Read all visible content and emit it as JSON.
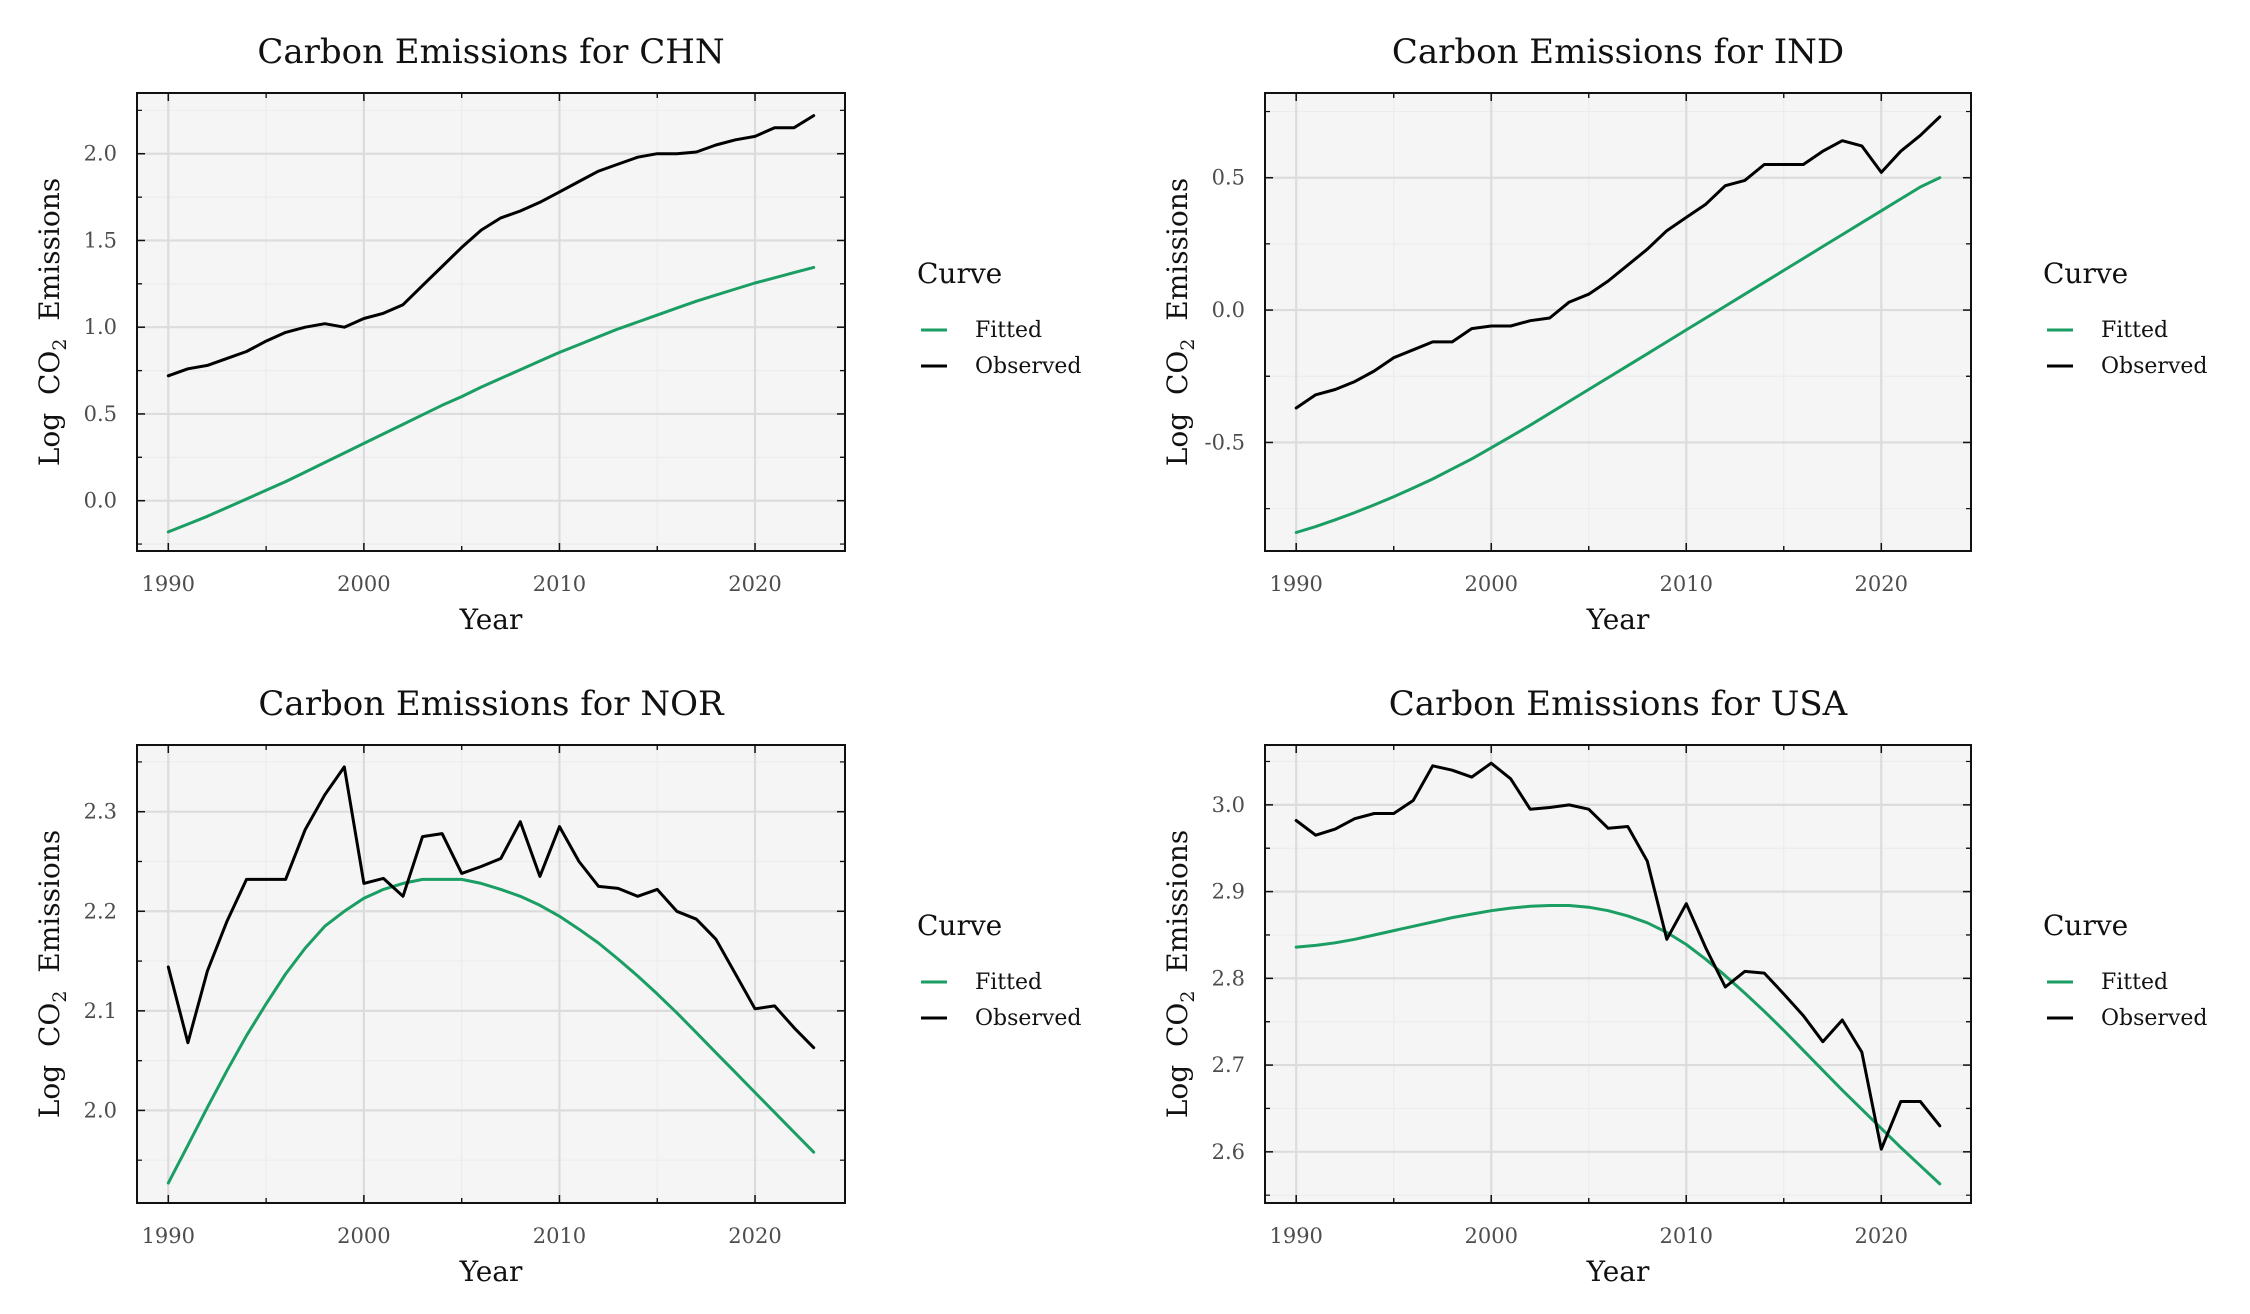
{
  "colors": {
    "fitted": "#1a9e63",
    "observed": "#000000",
    "panel_bg": "#f5f5f5",
    "grid_major": "#dcdcdc",
    "grid_minor": "#ececec"
  },
  "legend": {
    "title": "Curve",
    "items": [
      "Fitted",
      "Observed"
    ]
  },
  "chart_data": [
    {
      "type": "line",
      "title": "Carbon Emissions for CHN",
      "xlabel": "Year",
      "ylabel": "Log CO2 Emissions",
      "xlim": [
        1988.4,
        2024.6
      ],
      "ylim": [
        -0.29,
        2.35
      ],
      "xticks": [
        1990,
        2000,
        2010,
        2020
      ],
      "yticks": [
        0.0,
        0.5,
        1.0,
        1.5,
        2.0
      ],
      "ytick_labels": [
        "0.0",
        "0.5",
        "1.0",
        "1.5",
        "2.0"
      ],
      "x": [
        1990,
        1991,
        1992,
        1993,
        1994,
        1995,
        1996,
        1997,
        1998,
        1999,
        2000,
        2001,
        2002,
        2003,
        2004,
        2005,
        2006,
        2007,
        2008,
        2009,
        2010,
        2011,
        2012,
        2013,
        2014,
        2015,
        2016,
        2017,
        2018,
        2019,
        2020,
        2021,
        2022,
        2023
      ],
      "series": [
        {
          "name": "Fitted",
          "values": [
            -0.18,
            -0.135,
            -0.09,
            -0.04,
            0.01,
            0.06,
            0.11,
            0.165,
            0.22,
            0.275,
            0.33,
            0.385,
            0.44,
            0.495,
            0.55,
            0.6,
            0.655,
            0.705,
            0.755,
            0.805,
            0.855,
            0.9,
            0.945,
            0.99,
            1.03,
            1.07,
            1.11,
            1.15,
            1.185,
            1.22,
            1.255,
            1.285,
            1.315,
            1.345
          ]
        },
        {
          "name": "Observed",
          "values": [
            0.72,
            0.76,
            0.78,
            0.82,
            0.86,
            0.92,
            0.97,
            1.0,
            1.02,
            1.0,
            1.05,
            1.08,
            1.13,
            1.24,
            1.35,
            1.46,
            1.56,
            1.63,
            1.67,
            1.72,
            1.78,
            1.84,
            1.9,
            1.94,
            1.98,
            2.0,
            2.0,
            2.01,
            2.05,
            2.08,
            2.1,
            2.15,
            2.15,
            2.22
          ]
        }
      ]
    },
    {
      "type": "line",
      "title": "Carbon Emissions for IND",
      "xlabel": "Year",
      "ylabel": "Log CO2 Emissions",
      "xlim": [
        1988.4,
        2024.6
      ],
      "ylim": [
        -0.91,
        0.82
      ],
      "xticks": [
        1990,
        2000,
        2010,
        2020
      ],
      "yticks": [
        -0.5,
        0.0,
        0.5
      ],
      "ytick_labels": [
        "-0.5",
        "0.0",
        "0.5"
      ],
      "x": [
        1990,
        1991,
        1992,
        1993,
        1994,
        1995,
        1996,
        1997,
        1998,
        1999,
        2000,
        2001,
        2002,
        2003,
        2004,
        2005,
        2006,
        2007,
        2008,
        2009,
        2010,
        2011,
        2012,
        2013,
        2014,
        2015,
        2016,
        2017,
        2018,
        2019,
        2020,
        2021,
        2022,
        2023
      ],
      "series": [
        {
          "name": "Fitted",
          "values": [
            -0.84,
            -0.818,
            -0.792,
            -0.765,
            -0.736,
            -0.705,
            -0.672,
            -0.638,
            -0.6,
            -0.562,
            -0.52,
            -0.478,
            -0.435,
            -0.39,
            -0.345,
            -0.3,
            -0.255,
            -0.21,
            -0.165,
            -0.12,
            -0.075,
            -0.03,
            0.015,
            0.06,
            0.105,
            0.15,
            0.195,
            0.24,
            0.285,
            0.33,
            0.375,
            0.42,
            0.465,
            0.5
          ]
        },
        {
          "name": "Observed",
          "values": [
            -0.37,
            -0.32,
            -0.3,
            -0.27,
            -0.23,
            -0.18,
            -0.15,
            -0.12,
            -0.12,
            -0.07,
            -0.06,
            -0.06,
            -0.04,
            -0.03,
            0.03,
            0.06,
            0.11,
            0.17,
            0.23,
            0.3,
            0.35,
            0.4,
            0.47,
            0.49,
            0.55,
            0.55,
            0.55,
            0.6,
            0.64,
            0.62,
            0.52,
            0.6,
            0.66,
            0.73
          ]
        }
      ]
    },
    {
      "type": "line",
      "title": "Carbon Emissions for NOR",
      "xlabel": "Year",
      "ylabel": "Log CO2 Emissions",
      "xlim": [
        1988.4,
        2024.6
      ],
      "ylim": [
        1.907,
        2.367
      ],
      "xticks": [
        1990,
        2000,
        2010,
        2020
      ],
      "yticks": [
        2.0,
        2.1,
        2.2,
        2.3
      ],
      "ytick_labels": [
        "2.0",
        "2.1",
        "2.2",
        "2.3"
      ],
      "x": [
        1990,
        1991,
        1992,
        1993,
        1994,
        1995,
        1996,
        1997,
        1998,
        1999,
        2000,
        2001,
        2002,
        2003,
        2004,
        2005,
        2006,
        2007,
        2008,
        2009,
        2010,
        2011,
        2012,
        2013,
        2014,
        2015,
        2016,
        2017,
        2018,
        2019,
        2020,
        2021,
        2022,
        2023
      ],
      "series": [
        {
          "name": "Fitted",
          "values": [
            1.927,
            1.965,
            2.003,
            2.04,
            2.075,
            2.107,
            2.137,
            2.163,
            2.185,
            2.2,
            2.213,
            2.222,
            2.228,
            2.232,
            2.232,
            2.232,
            2.228,
            2.222,
            2.215,
            2.206,
            2.195,
            2.182,
            2.168,
            2.152,
            2.135,
            2.117,
            2.098,
            2.078,
            2.058,
            2.038,
            2.018,
            1.998,
            1.978,
            1.958
          ]
        },
        {
          "name": "Observed",
          "values": [
            2.144,
            2.068,
            2.14,
            2.19,
            2.232,
            2.232,
            2.232,
            2.282,
            2.317,
            2.345,
            2.228,
            2.233,
            2.215,
            2.275,
            2.278,
            2.238,
            2.245,
            2.253,
            2.29,
            2.235,
            2.285,
            2.25,
            2.225,
            2.223,
            2.215,
            2.222,
            2.2,
            2.192,
            2.172,
            2.137,
            2.102,
            2.105,
            2.083,
            2.063
          ]
        }
      ]
    },
    {
      "type": "line",
      "title": "Carbon Emissions for USA",
      "xlabel": "Year",
      "ylabel": "Log CO2 Emissions",
      "xlim": [
        1988.4,
        2024.6
      ],
      "ylim": [
        2.541,
        3.069
      ],
      "xticks": [
        1990,
        2000,
        2010,
        2020
      ],
      "yticks": [
        2.6,
        2.7,
        2.8,
        2.9,
        3.0
      ],
      "ytick_labels": [
        "2.6",
        "2.7",
        "2.8",
        "2.9",
        "3.0"
      ],
      "x": [
        1990,
        1991,
        1992,
        1993,
        1994,
        1995,
        1996,
        1997,
        1998,
        1999,
        2000,
        2001,
        2002,
        2003,
        2004,
        2005,
        2006,
        2007,
        2008,
        2009,
        2010,
        2011,
        2012,
        2013,
        2014,
        2015,
        2016,
        2017,
        2018,
        2019,
        2020,
        2021,
        2022,
        2023
      ],
      "series": [
        {
          "name": "Fitted",
          "values": [
            2.836,
            2.838,
            2.841,
            2.845,
            2.85,
            2.855,
            2.86,
            2.865,
            2.87,
            2.874,
            2.878,
            2.881,
            2.883,
            2.884,
            2.884,
            2.882,
            2.878,
            2.872,
            2.864,
            2.853,
            2.839,
            2.822,
            2.803,
            2.783,
            2.762,
            2.74,
            2.717,
            2.694,
            2.671,
            2.649,
            2.627,
            2.605,
            2.584,
            2.563
          ]
        },
        {
          "name": "Observed",
          "values": [
            2.982,
            2.965,
            2.972,
            2.984,
            2.99,
            2.99,
            3.005,
            3.045,
            3.04,
            3.032,
            3.048,
            3.03,
            2.995,
            2.997,
            3.0,
            2.995,
            2.973,
            2.975,
            2.935,
            2.845,
            2.886,
            2.835,
            2.79,
            2.808,
            2.806,
            2.782,
            2.757,
            2.727,
            2.752,
            2.715,
            2.603,
            2.658,
            2.658,
            2.63
          ]
        }
      ]
    }
  ]
}
